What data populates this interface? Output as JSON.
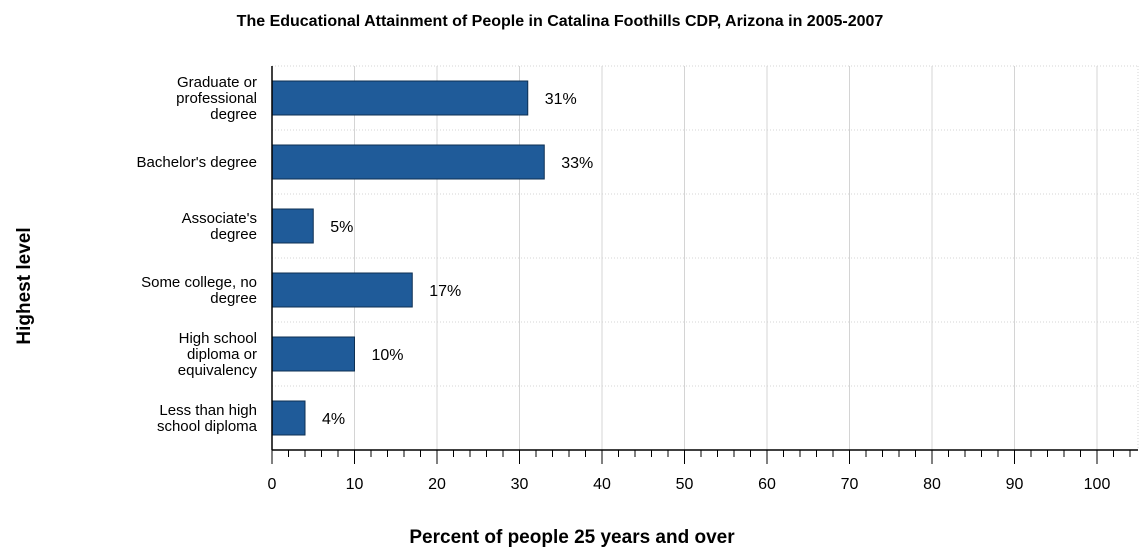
{
  "chart_data": {
    "type": "bar",
    "orientation": "horizontal",
    "title": "The Educational Attainment of People in Catalina Foothills CDP, Arizona in 2005-2007",
    "xlabel": "Percent of people 25 years and over",
    "ylabel": "Highest level",
    "categories": [
      [
        "Graduate or",
        "professional",
        "degree"
      ],
      [
        "Bachelor's degree"
      ],
      [
        "Associate's",
        "degree"
      ],
      [
        "Some college, no",
        "degree"
      ],
      [
        "High school",
        "diploma or",
        "equivalency"
      ],
      [
        "Less than high",
        "school diploma"
      ]
    ],
    "values": [
      31,
      33,
      5,
      17,
      10,
      4
    ],
    "data_labels": [
      "31%",
      "33%",
      "5%",
      "17%",
      "10%",
      "4%"
    ],
    "xlim": [
      0,
      105
    ],
    "xticks": [
      0,
      10,
      20,
      30,
      40,
      50,
      60,
      70,
      80,
      90,
      100
    ],
    "grid": true,
    "bar_color": "#1f5b99",
    "bar_edge_color": "#0d2f52",
    "grid_color": "#d4d4d4"
  }
}
